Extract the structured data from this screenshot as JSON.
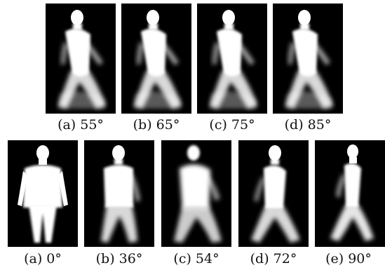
{
  "rows": [
    {
      "panels": [
        {
          "label": "(a) 55°"
        },
        {
          "label": "(b) 65°"
        },
        {
          "label": "(c) 75°"
        },
        {
          "label": "(d) 85°"
        }
      ]
    },
    {
      "panels": [
        {
          "label": "(a) 0°"
        },
        {
          "label": "(b) 36°"
        },
        {
          "label": "(c) 54°"
        },
        {
          "label": "(d) 72°"
        },
        {
          "label": "(e) 90°"
        }
      ]
    }
  ]
}
